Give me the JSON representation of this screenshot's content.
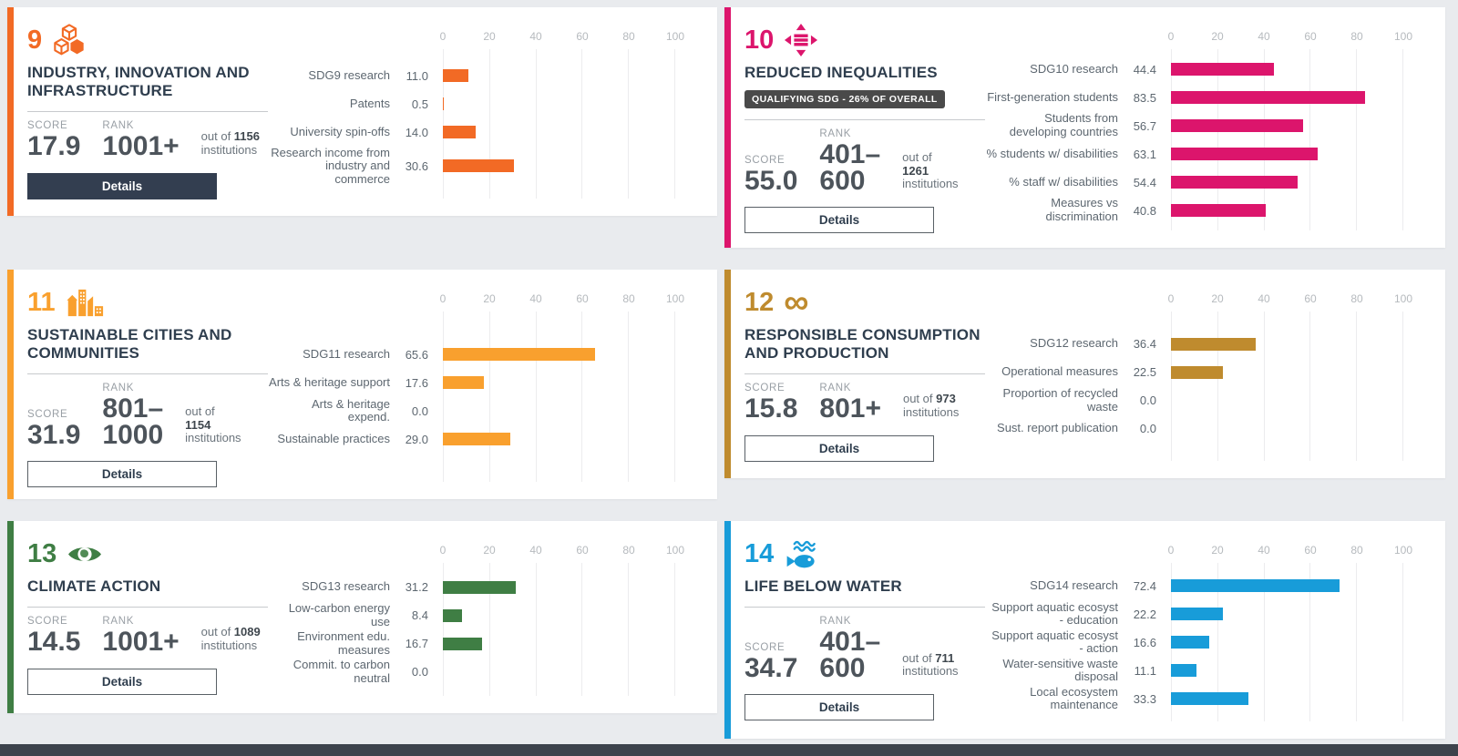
{
  "page": {
    "background": "#e9ebee",
    "card_background": "#ffffff",
    "bottom_bar_color": "#3d434c",
    "title_color": "#2f3e4e",
    "label_color": "#5d6770",
    "tick_color": "#b6babe",
    "solid_button_color": "#333e50"
  },
  "cards": [
    {
      "number": "9",
      "icon": "industry-cubes-icon",
      "accent": "#f26a25",
      "title": "INDUSTRY, INNOVATION AND INFRASTRUCTURE",
      "badge": null,
      "score_label": "SCORE",
      "score": "17.9",
      "rank_label": "RANK",
      "rank_lines": [
        "1001+"
      ],
      "out_of_label": "out of",
      "out_of_total": "1156",
      "institutions_label": "institutions",
      "out_of_stacked": false,
      "details_label": "Details",
      "details_variant": "solid",
      "axis_ticks": [
        "0",
        "20",
        "40",
        "60",
        "80",
        "100"
      ],
      "bars": [
        {
          "label": "SDG9 research",
          "value": 11.0,
          "display": "11.0"
        },
        {
          "label": "Patents",
          "value": 0.5,
          "display": "0.5"
        },
        {
          "label": "University spin-offs",
          "value": 14.0,
          "display": "14.0"
        },
        {
          "label": "Research income from industry and commerce",
          "value": 30.6,
          "display": "30.6"
        }
      ]
    },
    {
      "number": "10",
      "icon": "equality-arrows-icon",
      "accent": "#dc156c",
      "title": "REDUCED INEQUALITIES",
      "badge": "QUALIFYING SDG - 26% OF OVERALL",
      "score_label": "SCORE",
      "score": "55.0",
      "rank_label": "RANK",
      "rank_lines": [
        "401–",
        "600"
      ],
      "out_of_label": "out of",
      "out_of_total": "1261",
      "institutions_label": "institutions",
      "out_of_stacked": true,
      "details_label": "Details",
      "details_variant": "outline",
      "axis_ticks": [
        "0",
        "20",
        "40",
        "60",
        "80",
        "100"
      ],
      "bars": [
        {
          "label": "SDG10 research",
          "value": 44.4,
          "display": "44.4"
        },
        {
          "label": "First-generation students",
          "value": 83.5,
          "display": "83.5"
        },
        {
          "label": "Students from developing countries",
          "value": 56.7,
          "display": "56.7"
        },
        {
          "label": "% students w/ disabilities",
          "value": 63.1,
          "display": "63.1"
        },
        {
          "label": "% staff w/ disabilities",
          "value": 54.4,
          "display": "54.4"
        },
        {
          "label": "Measures vs discrimination",
          "value": 40.8,
          "display": "40.8"
        }
      ]
    },
    {
      "number": "11",
      "icon": "city-buildings-icon",
      "accent": "#f9a02e",
      "title": "SUSTAINABLE CITIES AND COMMUNITIES",
      "badge": null,
      "score_label": "SCORE",
      "score": "31.9",
      "rank_label": "RANK",
      "rank_lines": [
        "801–",
        "1000"
      ],
      "out_of_label": "out of",
      "out_of_total": "1154",
      "institutions_label": "institutions",
      "out_of_stacked": true,
      "details_label": "Details",
      "details_variant": "outline",
      "axis_ticks": [
        "0",
        "20",
        "40",
        "60",
        "80",
        "100"
      ],
      "bars": [
        {
          "label": "SDG11 research",
          "value": 65.6,
          "display": "65.6"
        },
        {
          "label": "Arts & heritage support",
          "value": 17.6,
          "display": "17.6"
        },
        {
          "label": "Arts & heritage expend.",
          "value": 0.0,
          "display": "0.0"
        },
        {
          "label": "Sustainable practices",
          "value": 29.0,
          "display": "29.0"
        }
      ]
    },
    {
      "number": "12",
      "icon": "infinity-icon",
      "accent": "#bf8b2e",
      "title": "RESPONSIBLE CONSUMPTION AND PRODUCTION",
      "badge": null,
      "score_label": "SCORE",
      "score": "15.8",
      "rank_label": "RANK",
      "rank_lines": [
        "801+"
      ],
      "out_of_label": "out of",
      "out_of_total": "973",
      "institutions_label": "institutions",
      "out_of_stacked": false,
      "details_label": "Details",
      "details_variant": "outline",
      "axis_ticks": [
        "0",
        "20",
        "40",
        "60",
        "80",
        "100"
      ],
      "bars": [
        {
          "label": "SDG12 research",
          "value": 36.4,
          "display": "36.4"
        },
        {
          "label": "Operational measures",
          "value": 22.5,
          "display": "22.5"
        },
        {
          "label": "Proportion of recycled waste",
          "value": 0.0,
          "display": "0.0"
        },
        {
          "label": "Sust. report publication",
          "value": 0.0,
          "display": "0.0"
        }
      ]
    },
    {
      "number": "13",
      "icon": "eye-globe-icon",
      "accent": "#3f7e44",
      "title": "CLIMATE ACTION",
      "badge": null,
      "score_label": "SCORE",
      "score": "14.5",
      "rank_label": "RANK",
      "rank_lines": [
        "1001+"
      ],
      "out_of_label": "out of",
      "out_of_total": "1089",
      "institutions_label": "institutions",
      "out_of_stacked": false,
      "details_label": "Details",
      "details_variant": "outline",
      "axis_ticks": [
        "0",
        "20",
        "40",
        "60",
        "80",
        "100"
      ],
      "bars": [
        {
          "label": "SDG13 research",
          "value": 31.2,
          "display": "31.2"
        },
        {
          "label": "Low-carbon energy use",
          "value": 8.4,
          "display": "8.4"
        },
        {
          "label": "Environment edu. measures",
          "value": 16.7,
          "display": "16.7"
        },
        {
          "label": "Commit. to carbon neutral",
          "value": 0.0,
          "display": "0.0"
        }
      ]
    },
    {
      "number": "14",
      "icon": "fish-waves-icon",
      "accent": "#189cd9",
      "title": "LIFE BELOW WATER",
      "badge": null,
      "score_label": "SCORE",
      "score": "34.7",
      "rank_label": "RANK",
      "rank_lines": [
        "401–",
        "600"
      ],
      "out_of_label": "out of",
      "out_of_total": "711",
      "institutions_label": "institutions",
      "out_of_stacked": false,
      "details_label": "Details",
      "details_variant": "outline",
      "axis_ticks": [
        "0",
        "20",
        "40",
        "60",
        "80",
        "100"
      ],
      "bars": [
        {
          "label": "SDG14 research",
          "value": 72.4,
          "display": "72.4"
        },
        {
          "label": "Support aquatic ecosyst - education",
          "value": 22.2,
          "display": "22.2"
        },
        {
          "label": "Support aquatic ecosyst - action",
          "value": 16.6,
          "display": "16.6"
        },
        {
          "label": "Water-sensitive waste disposal",
          "value": 11.1,
          "display": "11.1"
        },
        {
          "label": "Local ecosystem maintenance",
          "value": 33.3,
          "display": "33.3"
        }
      ]
    }
  ],
  "chart_data": [
    {
      "type": "bar",
      "orientation": "horizontal",
      "title": "SDG 9 Industry, Innovation and Infrastructure",
      "categories": [
        "SDG9 research",
        "Patents",
        "University spin-offs",
        "Research income from industry and commerce"
      ],
      "values": [
        11.0,
        0.5,
        14.0,
        30.6
      ],
      "xlim": [
        0,
        100
      ],
      "x_ticks": [
        0,
        20,
        40,
        60,
        80,
        100
      ],
      "color": "#f26a25",
      "grid": true
    },
    {
      "type": "bar",
      "orientation": "horizontal",
      "title": "SDG 10 Reduced Inequalities",
      "categories": [
        "SDG10 research",
        "First-generation students",
        "Students from developing countries",
        "% students w/ disabilities",
        "% staff w/ disabilities",
        "Measures vs discrimination"
      ],
      "values": [
        44.4,
        83.5,
        56.7,
        63.1,
        54.4,
        40.8
      ],
      "xlim": [
        0,
        100
      ],
      "x_ticks": [
        0,
        20,
        40,
        60,
        80,
        100
      ],
      "color": "#dc156c",
      "grid": true
    },
    {
      "type": "bar",
      "orientation": "horizontal",
      "title": "SDG 11 Sustainable Cities and Communities",
      "categories": [
        "SDG11 research",
        "Arts & heritage support",
        "Arts & heritage expend.",
        "Sustainable practices"
      ],
      "values": [
        65.6,
        17.6,
        0.0,
        29.0
      ],
      "xlim": [
        0,
        100
      ],
      "x_ticks": [
        0,
        20,
        40,
        60,
        80,
        100
      ],
      "color": "#f9a02e",
      "grid": true
    },
    {
      "type": "bar",
      "orientation": "horizontal",
      "title": "SDG 12 Responsible Consumption and Production",
      "categories": [
        "SDG12 research",
        "Operational measures",
        "Proportion of recycled waste",
        "Sust. report publication"
      ],
      "values": [
        36.4,
        22.5,
        0.0,
        0.0
      ],
      "xlim": [
        0,
        100
      ],
      "x_ticks": [
        0,
        20,
        40,
        60,
        80,
        100
      ],
      "color": "#bf8b2e",
      "grid": true
    },
    {
      "type": "bar",
      "orientation": "horizontal",
      "title": "SDG 13 Climate Action",
      "categories": [
        "SDG13 research",
        "Low-carbon energy use",
        "Environment edu. measures",
        "Commit. to carbon neutral"
      ],
      "values": [
        31.2,
        8.4,
        16.7,
        0.0
      ],
      "xlim": [
        0,
        100
      ],
      "x_ticks": [
        0,
        20,
        40,
        60,
        80,
        100
      ],
      "color": "#3f7e44",
      "grid": true
    },
    {
      "type": "bar",
      "orientation": "horizontal",
      "title": "SDG 14 Life Below Water",
      "categories": [
        "SDG14 research",
        "Support aquatic ecosyst - education",
        "Support aquatic ecosyst - action",
        "Water-sensitive waste disposal",
        "Local ecosystem maintenance"
      ],
      "values": [
        72.4,
        22.2,
        16.6,
        11.1,
        33.3
      ],
      "xlim": [
        0,
        100
      ],
      "x_ticks": [
        0,
        20,
        40,
        60,
        80,
        100
      ],
      "color": "#189cd9",
      "grid": true
    }
  ]
}
